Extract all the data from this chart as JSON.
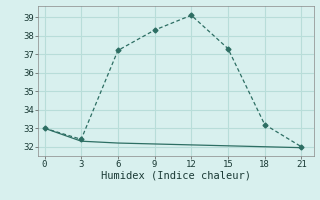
{
  "xlabel": "Humidex (Indice chaleur)",
  "line1_x": [
    0,
    3,
    6,
    9,
    12,
    15,
    18,
    21
  ],
  "line1_y": [
    33.0,
    32.4,
    37.2,
    38.3,
    39.1,
    37.3,
    33.2,
    32.0
  ],
  "line2_x": [
    0,
    3,
    6,
    9,
    12,
    15,
    18,
    21
  ],
  "line2_y": [
    33.0,
    32.3,
    32.2,
    32.15,
    32.1,
    32.05,
    32.0,
    31.95
  ],
  "line_color": "#2d6e63",
  "marker": "D",
  "marker_size": 2.5,
  "xlim": [
    -0.5,
    22
  ],
  "ylim": [
    31.5,
    39.6
  ],
  "xticks": [
    0,
    3,
    6,
    9,
    12,
    15,
    18,
    21
  ],
  "yticks": [
    32,
    33,
    34,
    35,
    36,
    37,
    38,
    39
  ],
  "background_color": "#d8f0ee",
  "grid_color": "#b8ddd9",
  "tick_fontsize": 6.5,
  "label_fontsize": 7.5
}
